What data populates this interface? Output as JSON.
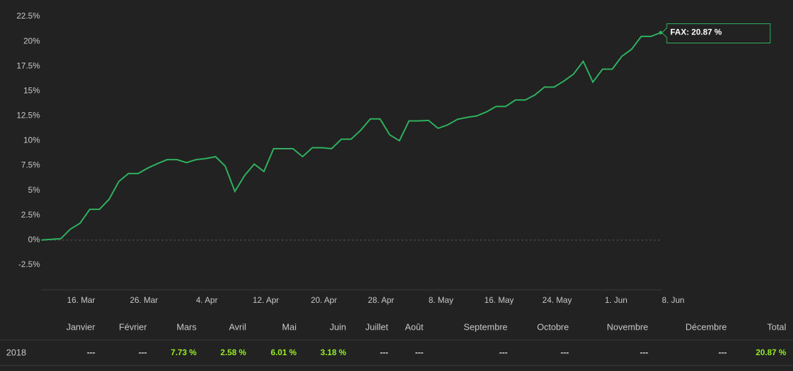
{
  "chart_data": {
    "type": "line",
    "color": "#2fb35f",
    "values": [
      0,
      0.07,
      0.14,
      1.1,
      1.7,
      3.1,
      3.1,
      4.1,
      5.9,
      6.7,
      6.7,
      7.25,
      7.7,
      8.1,
      8.1,
      7.8,
      8.1,
      8.2,
      8.4,
      7.45,
      4.9,
      6.5,
      7.65,
      6.9,
      9.2,
      9.2,
      9.2,
      8.4,
      9.3,
      9.3,
      9.2,
      10.15,
      10.15,
      11.05,
      12.2,
      12.2,
      10.6,
      10.0,
      12.0,
      12.0,
      12.05,
      11.25,
      11.6,
      12.15,
      12.35,
      12.5,
      12.9,
      13.45,
      13.45,
      14.1,
      14.1,
      14.6,
      15.4,
      15.4,
      16.0,
      16.7,
      18.0,
      15.9,
      17.2,
      17.2,
      18.5,
      19.2,
      20.5,
      20.5,
      20.87
    ],
    "ylim": [
      -5,
      22.5
    ],
    "yticks": [
      {
        "value": -2.5,
        "label": "-2.5%"
      },
      {
        "value": 0,
        "label": "0%"
      },
      {
        "value": 2.5,
        "label": "2.5%"
      },
      {
        "value": 5,
        "label": "5%"
      },
      {
        "value": 7.5,
        "label": "7.5%"
      },
      {
        "value": 10,
        "label": "10%"
      },
      {
        "value": 12.5,
        "label": "12.5%"
      },
      {
        "value": 15,
        "label": "15%"
      },
      {
        "value": 17.5,
        "label": "17.5%"
      },
      {
        "value": 20,
        "label": "20%"
      },
      {
        "value": 22.5,
        "label": "22.5%"
      }
    ],
    "xlim": [
      0,
      64
    ],
    "xticks": [
      {
        "value": 4.1,
        "label": "16. Mar"
      },
      {
        "value": 10.6,
        "label": "26. Mar"
      },
      {
        "value": 17.1,
        "label": "4. Apr"
      },
      {
        "value": 23.2,
        "label": "12. Apr"
      },
      {
        "value": 29.2,
        "label": "20. Apr"
      },
      {
        "value": 35.1,
        "label": "28. Apr"
      },
      {
        "value": 41.3,
        "label": "8. May"
      },
      {
        "value": 47.3,
        "label": "16. May"
      },
      {
        "value": 53.3,
        "label": "24. May"
      },
      {
        "value": 59.4,
        "label": "1. Jun"
      },
      {
        "value": 65.3,
        "label": "8. Jun"
      }
    ],
    "zero_line": true,
    "annotation": "FAX: 20.87 %"
  },
  "table": {
    "header": [
      "Janvier",
      "Février",
      "Mars",
      "Avril",
      "Mai",
      "Juin",
      "Juillet",
      "Août",
      "Septembre",
      "Octobre",
      "Novembre",
      "Décembre",
      "Total"
    ],
    "rows": [
      [
        "2018",
        "---",
        "---",
        "7.73 %",
        "2.58 %",
        "6.01 %",
        "3.18 %",
        "---",
        "---",
        "---",
        "---",
        "---",
        "---",
        "20.87 %"
      ]
    ]
  }
}
